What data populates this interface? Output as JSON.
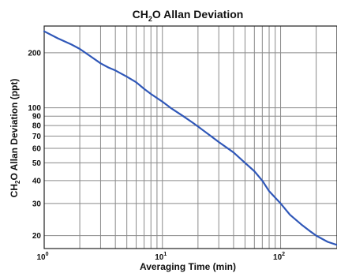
{
  "chart_data": {
    "type": "line",
    "title_main": "CH",
    "title_sub": "2",
    "title_rest": "O  Allan Deviation",
    "ylabel_main": "CH",
    "ylabel_sub": "2",
    "ylabel_rest": "O  Allan Deviation (ppt)",
    "xlabel": "Averaging Time (min)",
    "xscale": "log",
    "yscale": "log",
    "xlim": [
      1,
      300
    ],
    "ylim": [
      17,
      280
    ],
    "grid": true,
    "x_ticks": [
      {
        "value": 1,
        "base": "10",
        "exp": "0"
      },
      {
        "value": 10,
        "base": "10",
        "exp": "1"
      },
      {
        "value": 100,
        "base": "10",
        "exp": "2"
      }
    ],
    "y_ticks": [
      {
        "value": 20,
        "label": "20"
      },
      {
        "value": 30,
        "label": "30"
      },
      {
        "value": 40,
        "label": "40"
      },
      {
        "value": 50,
        "label": "50"
      },
      {
        "value": 60,
        "label": "60"
      },
      {
        "value": 70,
        "label": "70"
      },
      {
        "value": 80,
        "label": "80"
      },
      {
        "value": 90,
        "label": "90"
      },
      {
        "value": 100,
        "label": "100"
      },
      {
        "value": 200,
        "label": "200"
      }
    ],
    "series": [
      {
        "color": "#2f57b8",
        "x": [
          1,
          1.3,
          1.7,
          2,
          2.5,
          3,
          3.5,
          4,
          5,
          6,
          7,
          8,
          10,
          12,
          15,
          18,
          20,
          25,
          30,
          40,
          50,
          60,
          70,
          80,
          100,
          120,
          150,
          180,
          200,
          250,
          300
        ],
        "y": [
          262,
          240,
          222,
          210,
          190,
          175,
          166,
          160,
          148,
          138,
          127,
          119,
          108,
          99,
          90,
          83,
          79,
          71,
          65,
          57,
          50,
          45,
          40,
          35,
          30,
          26,
          23,
          21,
          20,
          18.5,
          17.8
        ]
      }
    ]
  }
}
